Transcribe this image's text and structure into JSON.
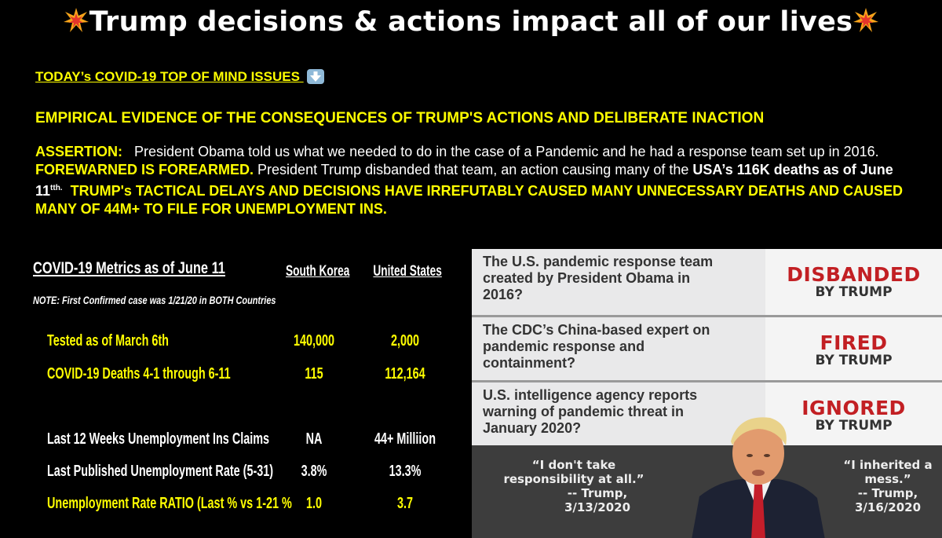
{
  "title": "Trump decisions & actions impact all of our lives",
  "top_issues": "TODAY’s COVID-19 TOP OF MIND ISSUES",
  "evidence_heading": "EMPIRICAL EVIDENCE OF THE CONSEQUENCES OF TRUMP'S ACTIONS AND DELIBERATE INACTION",
  "assertion": {
    "label": "ASSERTION:",
    "p1": "President Obama  told us what we needed to do in the case of a Pandemic and he had a response team set up in 2016.",
    "forewarned": "FOREWARNED IS FOREARMED.",
    "p2": "President Trump disbanded that team, an action causing many of the",
    "deaths": "USA’s 116K deaths as of June 11",
    "sup": "tth.",
    "caps": "TRUMP's TACTICAL DELAYS AND DECISIONS  HAVE IRREFUTABLY CAUSED MANY UNNECESSARY DEATHS AND CAUSED MANY OF 44M+ TO FILE FOR UNEMPLOYMENT INS."
  },
  "metrics": {
    "heading": "COVID-19 Metrics as of June 11",
    "note": "NOTE:  First Confirmed case was 1/21/20 in BOTH Countries",
    "col1": "South Korea",
    "col2": "United States",
    "rows": [
      {
        "label": "Tested as of March 6th",
        "sk": "140,000",
        "us": "2,000"
      },
      {
        "label": "COVID-19 Deaths 4-1 through 6-11",
        "sk": "115",
        "us": "112,164"
      },
      {
        "label": "Last 12 Weeks Unemployment Ins Claims",
        "sk": "NA",
        "us": "44+ Milliion"
      },
      {
        "label": "Last Published Unemployment Rate (5-31)",
        "sk": "3.8%",
        "us": "13.3%"
      },
      {
        "label": "Unemployment Rate  RATIO (Last % vs 1-21 %",
        "sk": "1.0",
        "us": "3.7"
      }
    ]
  },
  "panel": {
    "rows": [
      {
        "question": "The U.S. pandemic response team created by President Obama in 2016?",
        "answer": "DISBANDED",
        "by": "BY TRUMP"
      },
      {
        "question": "The CDC’s China-based expert on pandemic response and containment?",
        "answer": "FIRED",
        "by": "BY TRUMP"
      },
      {
        "question": "U.S. intelligence agency reports warning of pandemic threat in January 2020?",
        "answer": "IGNORED",
        "by": "BY TRUMP"
      }
    ],
    "quote_left": {
      "text": "“I don't take responsibility at all.”",
      "attr": "-- Trump,",
      "date": "3/13/2020"
    },
    "quote_right": {
      "text": "“I inherited a mess.”",
      "attr": "-- Trump,",
      "date": "3/16/2020"
    }
  }
}
